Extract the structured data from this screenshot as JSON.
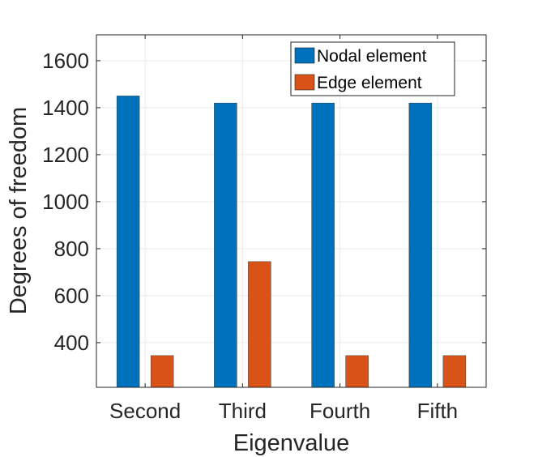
{
  "chart_data": {
    "type": "bar",
    "title": "",
    "xlabel": "Eigenvalue",
    "ylabel": "Degrees of freedom",
    "categories": [
      "Second",
      "Third",
      "Fourth",
      "Fifth"
    ],
    "series": [
      {
        "name": "Nodal element",
        "color": "#0072BD",
        "values": [
          1450,
          1420,
          1420,
          1420
        ]
      },
      {
        "name": "Edge element",
        "color": "#D95319",
        "values": [
          345,
          745,
          345,
          345
        ]
      }
    ],
    "ylim": [
      210,
      1710
    ],
    "yticks": [
      400,
      600,
      800,
      1000,
      1200,
      1400,
      1600
    ],
    "ytick_labels": [
      "400",
      "600",
      "800",
      "1000",
      "1200",
      "1400",
      "1600"
    ],
    "grid": true,
    "legend_position": "top-right"
  }
}
